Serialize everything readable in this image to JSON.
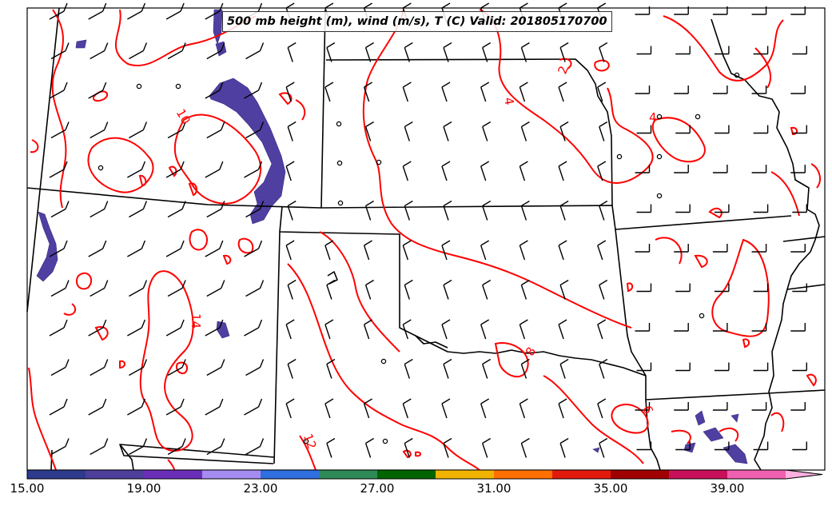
{
  "title": "500 mb height (m), wind (m/s), T (C) Valid: 201805170700",
  "contour_labels": [
    "2",
    "4",
    "4",
    "10",
    "14",
    "8",
    "6",
    "12"
  ],
  "colorbar": {
    "tick_labels": [
      "15.00",
      "19.00",
      "23.00",
      "27.00",
      "31.00",
      "35.00",
      "39.00"
    ],
    "colors": [
      "#2e3a8c",
      "#4e3e9c",
      "#6a2fb8",
      "#a58cf0",
      "#2f6fe0",
      "#2e8b57",
      "#006400",
      "#f0b400",
      "#ff7000",
      "#e11a0c",
      "#a00000",
      "#c8105a",
      "#f060b0",
      "#ffb0e0"
    ]
  },
  "colors": {
    "temperature_contour": "#ff0000",
    "borders": "#000000",
    "shading": "#4f3fa0"
  }
}
